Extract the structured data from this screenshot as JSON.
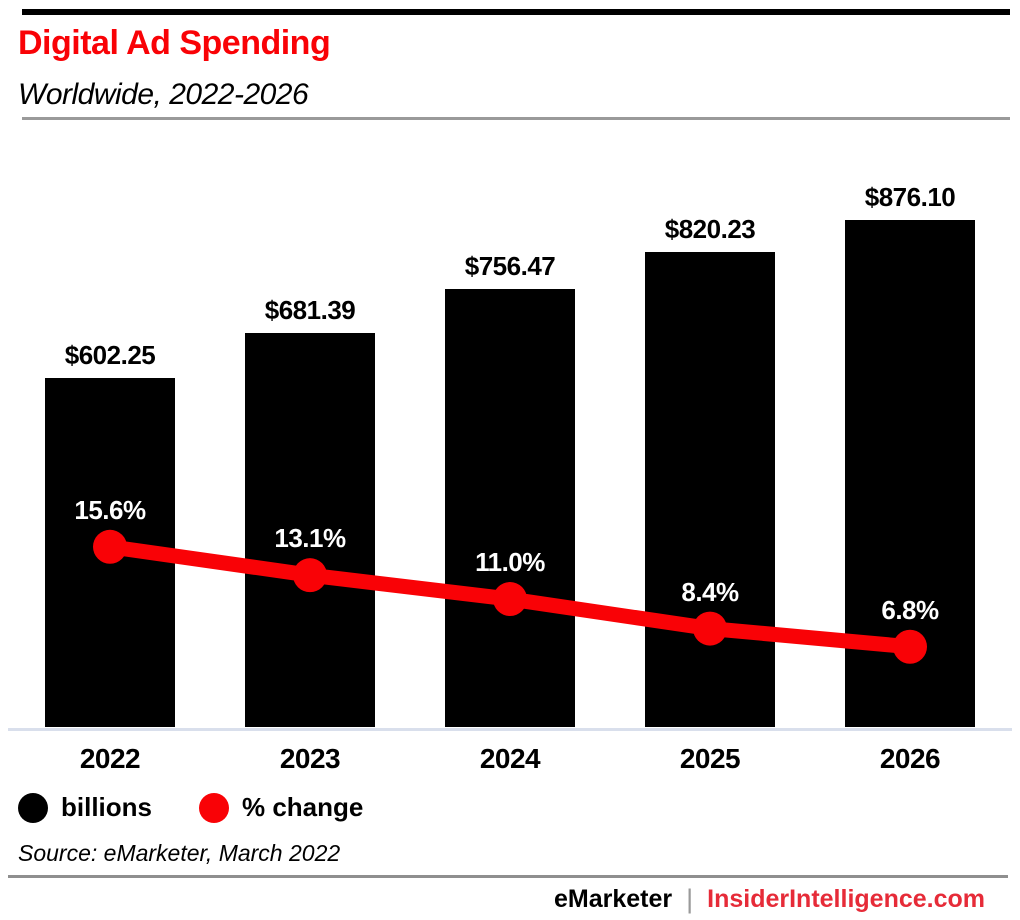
{
  "chart_data": {
    "type": "bar",
    "subtype": "bar-with-line-overlay",
    "title": "Digital Ad Spending",
    "subtitle": "Worldwide, 2022-2026",
    "categories": [
      "2022",
      "2023",
      "2024",
      "2025",
      "2026"
    ],
    "series": [
      {
        "name": "billions",
        "type": "bar",
        "color": "#000000",
        "values": [
          602.25,
          681.39,
          756.47,
          820.23,
          876.1
        ],
        "labels": [
          "$602.25",
          "$681.39",
          "$756.47",
          "$820.23",
          "$876.10"
        ]
      },
      {
        "name": "% change",
        "type": "line",
        "color": "#f90206",
        "values": [
          15.6,
          13.1,
          11.0,
          8.4,
          6.8
        ],
        "labels": [
          "15.6%",
          "13.1%",
          "11.0%",
          "8.4%",
          "6.8%"
        ]
      }
    ],
    "bar_ylim": [
      0,
      950
    ],
    "line_ylim": [
      0,
      20
    ],
    "grid": false,
    "legend_position": "bottom-left"
  },
  "legend": {
    "items": [
      {
        "label": "billions",
        "color": "#000000"
      },
      {
        "label": "% change",
        "color": "#f90206"
      }
    ]
  },
  "source_text": "Source: eMarketer, March 2022",
  "footer": {
    "brand": "eMarketer",
    "separator": "|",
    "site": "InsiderIntelligence.com"
  },
  "colors": {
    "accent_red": "#f90206",
    "footer_red": "#e62b38",
    "bar_black": "#000000",
    "axis_line": "#d9dfec",
    "rule_gray": "#9a9a9a"
  }
}
